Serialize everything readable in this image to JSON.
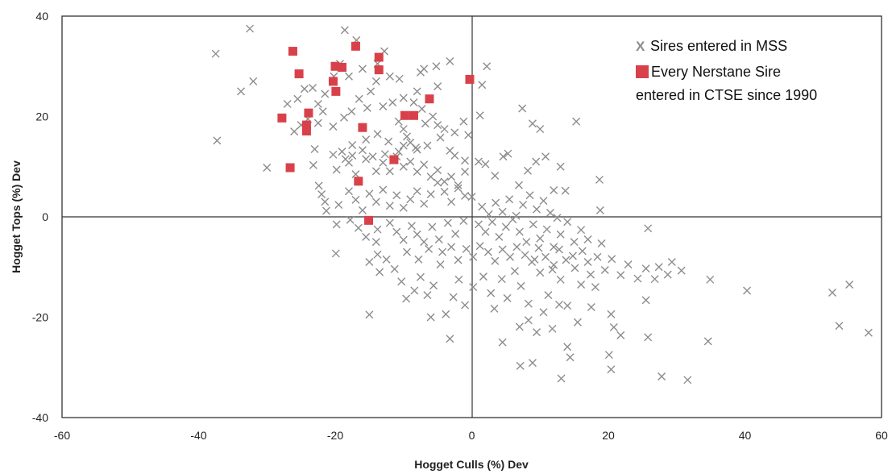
{
  "chart_data": {
    "type": "scatter",
    "xlabel": "Hogget Culls (%) Dev",
    "ylabel": "Hogget Tops (%) Dev",
    "xlim": [
      -60,
      60
    ],
    "ylim": [
      -40,
      40
    ],
    "x_ticks": [
      "-60",
      "-40",
      "-20",
      "0",
      "20",
      "40",
      "60"
    ],
    "y_ticks": [
      "40",
      "20",
      "0",
      "-20",
      "-40"
    ],
    "grid": false,
    "zero_lines": true,
    "legend": {
      "placement": "top-right",
      "items": [
        {
          "marker": "X",
          "text": "Sires entered in MSS"
        },
        {
          "marker": "square",
          "text": "Every Nerstane Sire"
        }
      ],
      "extra_line": "entered in CTSE since 1990"
    },
    "colors": {
      "sires_mss": "#8c8c8c",
      "nerstane": "#d9414a",
      "axes": "#333333"
    },
    "series": [
      {
        "name": "Sires entered in MSS",
        "marker": "x",
        "points": [
          [
            -37.5,
            32.5
          ],
          [
            -37.3,
            15.2
          ],
          [
            -32.5,
            37.5
          ],
          [
            -33.8,
            25
          ],
          [
            -32,
            27
          ],
          [
            -30,
            9.8
          ],
          [
            -18.6,
            37.2
          ],
          [
            -16.9,
            35.2
          ],
          [
            -13.8,
            30.5
          ],
          [
            -12.8,
            33
          ],
          [
            -3.2,
            31
          ],
          [
            -5.2,
            30
          ],
          [
            -7,
            29.5
          ],
          [
            -7.5,
            28.8
          ],
          [
            -10.6,
            27.5
          ],
          [
            2.2,
            30
          ],
          [
            1.5,
            26.3
          ],
          [
            1.2,
            20.2
          ],
          [
            -1.2,
            19
          ],
          [
            -0.5,
            16.3
          ],
          [
            -2.5,
            16.8
          ],
          [
            -4,
            17.5
          ],
          [
            -5,
            18.3
          ],
          [
            -6.5,
            14.2
          ],
          [
            -8,
            13.4
          ],
          [
            -10,
            14.2
          ],
          [
            -12.2,
            15
          ],
          [
            -13.8,
            16.5
          ],
          [
            -15.5,
            15.4
          ],
          [
            -17.5,
            14.3
          ],
          [
            -19,
            13
          ],
          [
            -20.3,
            12.4
          ],
          [
            -23.2,
            10.3
          ],
          [
            -19.8,
            9.4
          ],
          [
            -18,
            10.8
          ],
          [
            -17,
            8.5
          ],
          [
            -15.5,
            11.5
          ],
          [
            -14,
            9.1
          ],
          [
            -13,
            10.8
          ],
          [
            -12,
            9.1
          ],
          [
            -11,
            12
          ],
          [
            -10,
            10
          ],
          [
            -9,
            11
          ],
          [
            -8,
            9
          ],
          [
            -7,
            10.4
          ],
          [
            -6,
            8
          ],
          [
            -5,
            9.3
          ],
          [
            -4,
            7
          ],
          [
            -3,
            8
          ],
          [
            -2,
            6.3
          ],
          [
            -1,
            9
          ],
          [
            0,
            4
          ],
          [
            -10.7,
            19
          ],
          [
            -10,
            17.5
          ],
          [
            -9.5,
            16
          ],
          [
            -9,
            14.8
          ],
          [
            -8.2,
            13.8
          ],
          [
            -10.7,
            13
          ],
          [
            -11.5,
            11.2
          ],
          [
            -12.7,
            12.5
          ],
          [
            -14.5,
            12
          ],
          [
            -16,
            13.3
          ],
          [
            -17.5,
            12.2
          ],
          [
            -18.5,
            11.5
          ],
          [
            -20.3,
            18
          ],
          [
            -21.8,
            21
          ],
          [
            -21.5,
            24.5
          ],
          [
            -22.5,
            22.5
          ],
          [
            -24,
            19.5
          ],
          [
            -25,
            18.3
          ],
          [
            -26,
            17
          ],
          [
            -27,
            22.5
          ],
          [
            -25.5,
            23.5
          ],
          [
            -24.5,
            25.5
          ],
          [
            -23.3,
            25.7
          ],
          [
            -22.5,
            18.7
          ],
          [
            -20.2,
            28
          ],
          [
            -19.3,
            30.5
          ],
          [
            -18,
            28
          ],
          [
            -16,
            29.5
          ],
          [
            -14.8,
            25
          ],
          [
            -15.3,
            21.7
          ],
          [
            -16.5,
            23.5
          ],
          [
            -17.6,
            21
          ],
          [
            -18.7,
            19.8
          ],
          [
            -13,
            22
          ],
          [
            -11.6,
            22.8
          ],
          [
            -10,
            23.7
          ],
          [
            -8.5,
            22.8
          ],
          [
            -7.3,
            21.5
          ],
          [
            -5.7,
            20
          ],
          [
            -6.8,
            18.6
          ],
          [
            -4.6,
            15.8
          ],
          [
            -3.2,
            13.2
          ],
          [
            -2.5,
            12.2
          ],
          [
            -1,
            11.2
          ],
          [
            1,
            11
          ],
          [
            2,
            10.5
          ],
          [
            3.4,
            8.2
          ],
          [
            4.6,
            12
          ],
          [
            5.3,
            12.6
          ],
          [
            6.9,
            6.3
          ],
          [
            8.2,
            9.2
          ],
          [
            9.4,
            11
          ],
          [
            10.8,
            12
          ],
          [
            12,
            5.3
          ],
          [
            13,
            10
          ],
          [
            13.7,
            5.2
          ],
          [
            15.3,
            19
          ],
          [
            8.9,
            18.6
          ],
          [
            10,
            17.5
          ],
          [
            7.4,
            21.6
          ],
          [
            18.7,
            7.4
          ],
          [
            18.8,
            1.3
          ],
          [
            -1,
            4.2
          ],
          [
            -2,
            5.7
          ],
          [
            -3,
            3
          ],
          [
            -4,
            5
          ],
          [
            -5,
            6.8
          ],
          [
            -6,
            4.5
          ],
          [
            -7,
            2.6
          ],
          [
            -8,
            5.1
          ],
          [
            -9,
            3.5
          ],
          [
            -10,
            1.8
          ],
          [
            -11,
            4.3
          ],
          [
            -12,
            2.2
          ],
          [
            -13,
            5.4
          ],
          [
            -14,
            3
          ],
          [
            -15,
            4.6
          ],
          [
            -16,
            1.3
          ],
          [
            -17,
            3.4
          ],
          [
            -18,
            5.1
          ],
          [
            -19.5,
            2.4
          ],
          [
            -21.3,
            1.2
          ],
          [
            -22,
            4.5
          ],
          [
            -22.4,
            6.2
          ],
          [
            -19.8,
            -1.5
          ],
          [
            -17.8,
            -0.6
          ],
          [
            -16.6,
            -2.2
          ],
          [
            -15.5,
            -4
          ],
          [
            -13.8,
            -2.5
          ],
          [
            -12,
            -1.2
          ],
          [
            -11,
            -3
          ],
          [
            -10,
            -4.6
          ],
          [
            -8.8,
            -1.8
          ],
          [
            -8,
            -3.5
          ],
          [
            -7,
            -5
          ],
          [
            -5.8,
            -2
          ],
          [
            -4.8,
            -4.5
          ],
          [
            -3.5,
            -1.2
          ],
          [
            -2.4,
            -3.4
          ],
          [
            -1.2,
            -0.8
          ],
          [
            1,
            -1.5
          ],
          [
            2,
            -3
          ],
          [
            3,
            -1
          ],
          [
            4,
            -4
          ],
          [
            5,
            -2
          ],
          [
            6,
            -0.5
          ],
          [
            7,
            -3
          ],
          [
            8,
            -5
          ],
          [
            9,
            -1.5
          ],
          [
            10,
            -4.3
          ],
          [
            11,
            -2.5
          ],
          [
            12,
            -6
          ],
          [
            13,
            -3.5
          ],
          [
            14,
            -1
          ],
          [
            15,
            -5
          ],
          [
            16,
            -2.6
          ],
          [
            17,
            -4.5
          ],
          [
            19,
            -5.3
          ],
          [
            1.5,
            2
          ],
          [
            2.5,
            0.5
          ],
          [
            3.5,
            2.8
          ],
          [
            4.5,
            1
          ],
          [
            5.5,
            3.5
          ],
          [
            6.5,
            0.2
          ],
          [
            7.5,
            2.4
          ],
          [
            8.5,
            4.3
          ],
          [
            9.5,
            1.5
          ],
          [
            10.5,
            3.2
          ],
          [
            11.5,
            0.8
          ],
          [
            12.5,
            -0.2
          ],
          [
            -19.9,
            -7.3
          ],
          [
            -15,
            -9
          ],
          [
            -13.5,
            -11
          ],
          [
            -12.5,
            -8.5
          ],
          [
            -11.3,
            -10.4
          ],
          [
            -10.3,
            -12.9
          ],
          [
            -9.6,
            -16.3
          ],
          [
            -8.4,
            -14.7
          ],
          [
            -7.5,
            -12
          ],
          [
            -6.5,
            -15.6
          ],
          [
            -5.6,
            -13.7
          ],
          [
            -4.6,
            -9.5
          ],
          [
            -3.8,
            -19.4
          ],
          [
            -2.7,
            -16
          ],
          [
            -1.9,
            -12.5
          ],
          [
            -1,
            -17.6
          ],
          [
            0.2,
            -14
          ],
          [
            1.7,
            -11.9
          ],
          [
            2.8,
            -15.2
          ],
          [
            3.3,
            -18.3
          ],
          [
            4.4,
            -12.4
          ],
          [
            5.2,
            -16.2
          ],
          [
            6.3,
            -10.8
          ],
          [
            7.2,
            -13.8
          ],
          [
            8.3,
            -17.3
          ],
          [
            9.2,
            -8.5
          ],
          [
            10,
            -11.1
          ],
          [
            11.2,
            -15.6
          ],
          [
            12,
            -9.6
          ],
          [
            13,
            -12.5
          ],
          [
            14,
            -17.7
          ],
          [
            15.1,
            -10.2
          ],
          [
            16,
            -13.5
          ],
          [
            17,
            -9
          ],
          [
            18.1,
            -14
          ],
          [
            19.5,
            -10.6
          ],
          [
            20.5,
            -8.4
          ],
          [
            21.8,
            -11.6
          ],
          [
            22.9,
            -9.5
          ],
          [
            24.3,
            -12.3
          ],
          [
            25.5,
            -10.3
          ],
          [
            26.8,
            -12.4
          ],
          [
            27.4,
            -10
          ],
          [
            28.7,
            -11.5
          ],
          [
            29.3,
            -9
          ],
          [
            30.7,
            -10.7
          ],
          [
            -15,
            -19.5
          ],
          [
            -6,
            -20
          ],
          [
            -3.2,
            -24.3
          ],
          [
            4.5,
            -25
          ],
          [
            7,
            -21.9
          ],
          [
            8.3,
            -20.6
          ],
          [
            9.5,
            -23
          ],
          [
            10.5,
            -19
          ],
          [
            11.8,
            -22.3
          ],
          [
            12.8,
            -17.5
          ],
          [
            14,
            -25.9
          ],
          [
            14.4,
            -28
          ],
          [
            15.5,
            -21
          ],
          [
            17.5,
            -18
          ],
          [
            20.4,
            -19.4
          ],
          [
            20.8,
            -22
          ],
          [
            21.8,
            -23.6
          ],
          [
            25.5,
            -16.6
          ],
          [
            25.8,
            -24
          ],
          [
            27.8,
            -31.8
          ],
          [
            31.6,
            -32.5
          ],
          [
            34.9,
            -12.5
          ],
          [
            34.6,
            -24.8
          ],
          [
            40.3,
            -14.7
          ],
          [
            52.8,
            -15.1
          ],
          [
            55.3,
            -13.5
          ],
          [
            53.8,
            -21.7
          ],
          [
            58.1,
            -23.1
          ],
          [
            20.1,
            -27.5
          ],
          [
            20.4,
            -30.4
          ],
          [
            13.1,
            -32.2
          ],
          [
            8.9,
            -29.1
          ],
          [
            7.1,
            -29.7
          ],
          [
            -21.5,
            3
          ],
          [
            -23,
            13.5
          ],
          [
            -14,
            -5
          ],
          [
            -13.8,
            -7.5
          ],
          [
            -9.5,
            -7
          ],
          [
            -7.8,
            -8.5
          ],
          [
            -6.3,
            -6.4
          ],
          [
            -4.3,
            -7
          ],
          [
            -3,
            -6
          ],
          [
            -2,
            -8.6
          ],
          [
            -0.8,
            -6.4
          ],
          [
            0.2,
            -8
          ],
          [
            1.2,
            -5.8
          ],
          [
            2.4,
            -7
          ],
          [
            3.4,
            -8.8
          ],
          [
            4.5,
            -6.5
          ],
          [
            5.6,
            -8
          ],
          [
            6.6,
            -6
          ],
          [
            7.8,
            -7.6
          ],
          [
            8.8,
            -9
          ],
          [
            9.8,
            -6.2
          ],
          [
            10.8,
            -8
          ],
          [
            11.8,
            -10.5
          ],
          [
            12.8,
            -6.5
          ],
          [
            13.8,
            -8.6
          ],
          [
            14.8,
            -7.8
          ],
          [
            16.2,
            -6.8
          ],
          [
            17.4,
            -11.5
          ],
          [
            18.4,
            -8
          ],
          [
            25.8,
            -2.3
          ],
          [
            -5,
            26
          ],
          [
            -8,
            25
          ],
          [
            -12,
            28
          ],
          [
            -14,
            27
          ]
        ]
      },
      {
        "name": "Every Nerstane Sire",
        "marker": "square",
        "points": [
          [
            -26.2,
            33
          ],
          [
            -25.3,
            28.5
          ],
          [
            -20,
            30
          ],
          [
            -19,
            29.8
          ],
          [
            -17,
            34
          ],
          [
            -13.6,
            31.8
          ],
          [
            -13.6,
            29.3
          ],
          [
            -20.3,
            27
          ],
          [
            -19.9,
            25
          ],
          [
            -27.8,
            19.7
          ],
          [
            -23.9,
            20.7
          ],
          [
            -24.2,
            18.3
          ],
          [
            -24.2,
            17.1
          ],
          [
            -26.6,
            9.8
          ],
          [
            -16,
            17.8
          ],
          [
            -9.8,
            20.2
          ],
          [
            -8.5,
            20.2
          ],
          [
            -6.2,
            23.5
          ],
          [
            -11.4,
            11.4
          ],
          [
            -16.6,
            7.1
          ],
          [
            -15.1,
            -0.7
          ],
          [
            -0.3,
            27.4
          ]
        ]
      }
    ]
  }
}
